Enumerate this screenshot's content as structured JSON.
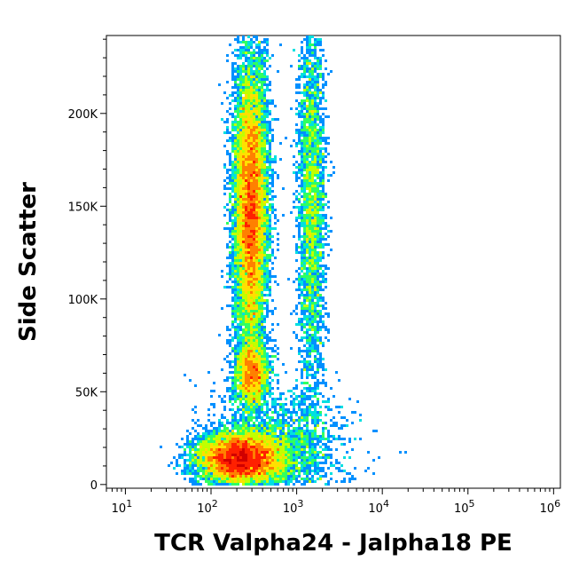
{
  "chart_data": {
    "type": "scatter",
    "xlabel": "TCR Valpha24 - Jalpha18 PE",
    "ylabel": "Side Scatter",
    "x_scale": "log",
    "xlim": [
      6,
      1200000
    ],
    "ylim": [
      -2000,
      242000
    ],
    "x_ticks": [
      {
        "value": 10,
        "base": "10",
        "exp": "1"
      },
      {
        "value": 100,
        "base": "10",
        "exp": "2"
      },
      {
        "value": 1000,
        "base": "10",
        "exp": "3"
      },
      {
        "value": 10000,
        "base": "10",
        "exp": "4"
      },
      {
        "value": 100000,
        "base": "10",
        "exp": "5"
      },
      {
        "value": 1000000,
        "base": "10",
        "exp": "6"
      }
    ],
    "y_ticks": [
      {
        "value": 0,
        "label": "0"
      },
      {
        "value": 50000,
        "label": "50K"
      },
      {
        "value": 100000,
        "label": "100K"
      },
      {
        "value": 150000,
        "label": "150K"
      },
      {
        "value": 200000,
        "label": "200K"
      }
    ],
    "populations": [
      {
        "x_center": 220,
        "y_center": 14000,
        "x_spread_log": 0.25,
        "y_spread": 7000,
        "weight": 0.3
      },
      {
        "x_center": 300,
        "y_center": 60000,
        "x_spread_log": 0.1,
        "y_spread": 9000,
        "weight": 0.08
      },
      {
        "x_center": 290,
        "y_center": 150000,
        "x_spread_log": 0.1,
        "y_spread": 40000,
        "weight": 0.42
      },
      {
        "x_center": 1500,
        "y_center": 150000,
        "x_spread_log": 0.08,
        "y_spread": 55000,
        "weight": 0.12
      },
      {
        "x_center": 600,
        "y_center": 20000,
        "x_spread_log": 0.4,
        "y_spread": 15000,
        "weight": 0.08
      }
    ],
    "density_colors": [
      "#0000ff",
      "#0090ff",
      "#00e0e0",
      "#30ff60",
      "#c0ff00",
      "#ffe000",
      "#ff8000",
      "#ff2000",
      "#d00000"
    ],
    "grid": false,
    "legend": "none"
  }
}
